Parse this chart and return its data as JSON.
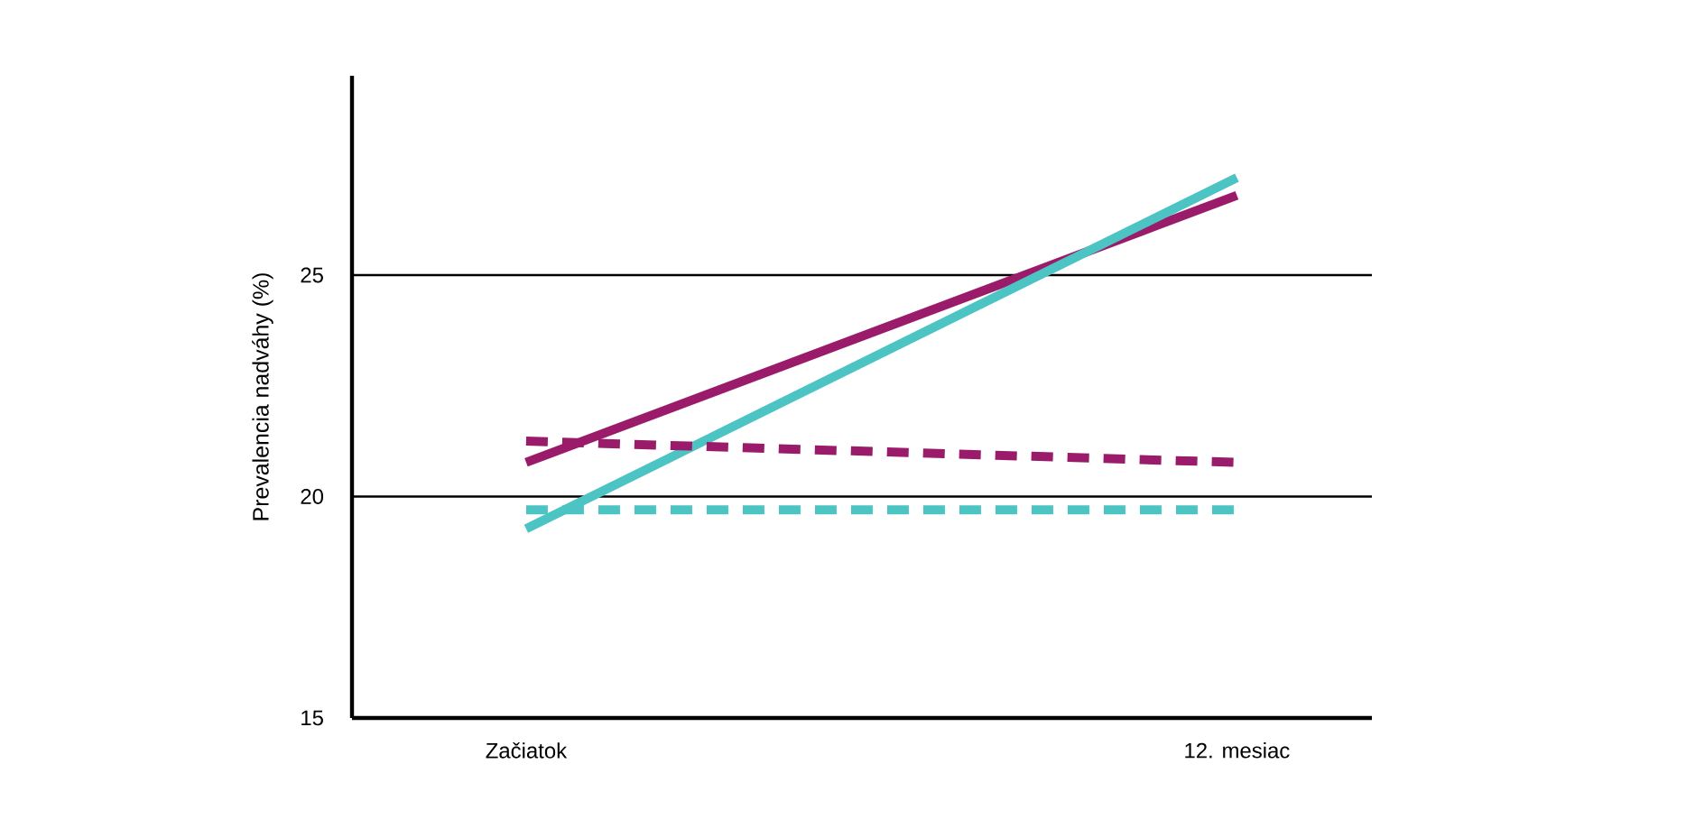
{
  "chart_data": {
    "type": "line",
    "ylabel": "Prevalencia nadváhy (%)",
    "categories": [
      "Začiatok",
      "12. mesiac"
    ],
    "series": [
      {
        "color": "#9b1b6b",
        "values": [
          20.77,
          26.8
        ],
        "line_style": "solid"
      },
      {
        "color": "#4cc4c4",
        "values": [
          19.27,
          27.2
        ],
        "line_style": "solid"
      },
      {
        "color": "#9b1b6b",
        "values": [
          21.25,
          20.77
        ],
        "line_style": "dashed"
      },
      {
        "color": "#4cc4c4",
        "values": [
          19.7,
          19.7
        ],
        "line_style": "dashed"
      }
    ],
    "ylim": [
      15,
      29.5
    ],
    "yticks": [
      15,
      20,
      25
    ],
    "grid": "y",
    "marker": "none"
  }
}
